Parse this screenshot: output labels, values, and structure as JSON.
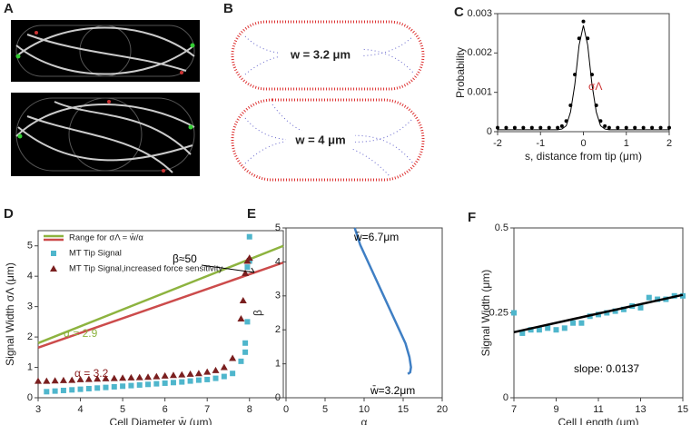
{
  "panels": {
    "labels": [
      "A",
      "B",
      "C",
      "D",
      "E",
      "F"
    ],
    "b_labels": [
      "w = 3.2 μm",
      "w = 4 μm"
    ]
  },
  "chart_data": [
    {
      "type": "line",
      "xlabel": "s, distance from tip (μm)",
      "ylabel": "Probability",
      "x": [
        -2,
        -1.8,
        -1.6,
        -1.4,
        -1.2,
        -1,
        -0.8,
        -0.6,
        -0.5,
        -0.4,
        -0.3,
        -0.2,
        -0.1,
        0,
        0.1,
        0.2,
        0.3,
        0.4,
        0.5,
        0.6,
        0.8,
        1,
        1.2,
        1.4,
        1.6,
        1.8,
        2
      ],
      "series": [
        {
          "color": "#000000",
          "marker": "circle",
          "values": [
            0.0001,
            0.0001,
            0.0001,
            0.0001,
            0.0001,
            0.0001,
            0.0001,
            0.0001,
            0.00014,
            0.00027,
            0.00067,
            0.00145,
            0.00237,
            0.0028,
            0.00237,
            0.00145,
            0.00067,
            0.00027,
            0.00014,
            0.0001,
            0.0001,
            0.0001,
            0.0001,
            0.0001,
            0.0001,
            0.0001,
            0.0001
          ]
        },
        {
          "color": "#000000",
          "values": [
            5e-05,
            5e-05,
            5e-05,
            5e-05,
            5e-05,
            5e-05,
            5e-05,
            5e-05,
            7e-05,
            0.00015,
            0.0005,
            0.0012,
            0.0022,
            0.0027,
            0.0022,
            0.0012,
            0.0005,
            0.00015,
            7e-05,
            5e-05,
            5e-05,
            5e-05,
            5e-05,
            5e-05,
            5e-05,
            5e-05,
            5e-05
          ]
        }
      ],
      "xlim": [
        -2,
        2
      ],
      "xticks": [
        -2,
        -1,
        0,
        1,
        2
      ],
      "ylim": [
        0,
        0.003
      ],
      "yticks": [
        0,
        0.001,
        0.002,
        0.003
      ],
      "annotations": [
        "σΛ"
      ]
    },
    {
      "type": "line",
      "xlabel": "Cell Diameter w̄ (μm)",
      "ylabel": "Signal Width σΛ (μm)",
      "legend": "top-left",
      "series": [
        {
          "name": "Range for σΛ = w̄/α",
          "color": "#8db33f",
          "x": [
            3,
            8.8
          ],
          "values": [
            1.8,
            5.0
          ]
        },
        {
          "color": "#cc4b4b",
          "x": [
            3,
            8.8
          ],
          "values": [
            1.65,
            4.45
          ]
        },
        {
          "name": "MT Tip Signal",
          "color": "#4fb6cc",
          "marker": "square",
          "x": [
            3.2,
            3.4,
            3.6,
            3.8,
            4,
            4.2,
            4.4,
            4.6,
            4.8,
            5,
            5.2,
            5.4,
            5.6,
            5.8,
            6,
            6.2,
            6.4,
            6.6,
            6.8,
            7,
            7.2,
            7.4,
            7.6,
            7.8,
            7.9,
            7.9,
            7.95,
            7.95,
            8,
            8
          ],
          "values": [
            0.2,
            0.22,
            0.24,
            0.26,
            0.28,
            0.3,
            0.32,
            0.34,
            0.36,
            0.38,
            0.4,
            0.42,
            0.44,
            0.46,
            0.48,
            0.5,
            0.52,
            0.55,
            0.58,
            0.6,
            0.64,
            0.7,
            0.8,
            1.2,
            1.5,
            1.8,
            2.5,
            4.3,
            4.5,
            5.3
          ]
        },
        {
          "name": "MT Tip Signal,increased force sensitivity",
          "color": "#7a1f1f",
          "marker": "triangle",
          "x": [
            3,
            3.2,
            3.4,
            3.6,
            3.8,
            4,
            4.2,
            4.4,
            4.6,
            4.8,
            5,
            5.2,
            5.4,
            5.6,
            5.8,
            6,
            6.2,
            6.4,
            6.6,
            6.8,
            7,
            7.2,
            7.4,
            7.6,
            7.8,
            7.85,
            7.9,
            7.95,
            8
          ],
          "values": [
            0.55,
            0.55,
            0.56,
            0.57,
            0.58,
            0.6,
            0.61,
            0.62,
            0.63,
            0.64,
            0.65,
            0.66,
            0.67,
            0.68,
            0.7,
            0.72,
            0.74,
            0.76,
            0.78,
            0.8,
            0.85,
            0.9,
            1.0,
            1.3,
            2.6,
            3.2,
            4.1,
            4.5,
            4.6
          ]
        }
      ],
      "xlim": [
        3,
        8.8
      ],
      "xticks": [
        3,
        4,
        5,
        6,
        7,
        8
      ],
      "ylim": [
        0,
        5.5
      ],
      "yticks": [
        0,
        1,
        2,
        3,
        4,
        5
      ],
      "annotations": [
        "β≈50",
        "α = 2.9",
        "α = 3.2"
      ]
    },
    {
      "type": "line",
      "xlabel": "α",
      "ylabel": "β",
      "series": [
        {
          "color": "#3f7fc4",
          "x": [
            8.8,
            9.5,
            10.5,
            11.5,
            12.5,
            13.5,
            14.5,
            15.3,
            15.8,
            16,
            15.9,
            15.6
          ],
          "values": [
            5,
            4.5,
            4,
            3.5,
            3,
            2.5,
            2,
            1.6,
            1.2,
            0.9,
            0.75,
            0.7
          ]
        }
      ],
      "xlim": [
        0,
        20
      ],
      "xticks": [
        0,
        5,
        10,
        15,
        20
      ],
      "ylim": [
        0,
        5
      ],
      "yticks": [
        0,
        1,
        2,
        3,
        4,
        5
      ],
      "annotations": [
        "w̄=6.7μm",
        "w̄=3.2μm"
      ]
    },
    {
      "type": "scatter",
      "xlabel": "Cell Length (μm)",
      "ylabel": "Signal Width (μm)",
      "series": [
        {
          "color": "#4fb6cc",
          "marker": "square",
          "x": [
            7,
            7.4,
            7.8,
            8.2,
            8.6,
            9,
            9.4,
            9.8,
            10.2,
            10.6,
            11,
            11.4,
            11.8,
            12.2,
            12.6,
            13,
            13.4,
            13.8,
            14.2,
            14.6,
            15
          ],
          "values": [
            0.25,
            0.19,
            0.2,
            0.2,
            0.205,
            0.2,
            0.205,
            0.22,
            0.22,
            0.24,
            0.245,
            0.25,
            0.255,
            0.26,
            0.27,
            0.265,
            0.295,
            0.29,
            0.29,
            0.3,
            0.3
          ]
        },
        {
          "color": "#000000",
          "x": [
            7,
            15
          ],
          "values": [
            0.193,
            0.303
          ]
        }
      ],
      "xlim": [
        7,
        15
      ],
      "xticks": [
        7,
        9,
        11,
        13,
        15
      ],
      "ylim": [
        0,
        0.5
      ],
      "yticks": [
        0,
        0.25,
        0.5
      ],
      "annotations": [
        "slope: 0.0137"
      ]
    }
  ]
}
